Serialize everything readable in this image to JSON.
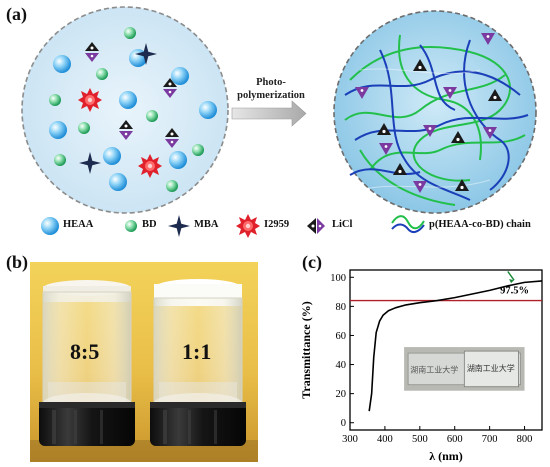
{
  "panels": {
    "a": "(a)",
    "b": "(b)",
    "c": "(c)"
  },
  "arrow": {
    "line1": "Photo-",
    "line2": "polymerization"
  },
  "legend": {
    "heaa": "HEAA",
    "bd": "BD",
    "mba": "MBA",
    "i2959": "I2959",
    "licl": "LiCl",
    "chain": "p(HEAA-co-BD) chain"
  },
  "photo": {
    "left_ratio": "8:5",
    "right_ratio": "1:1"
  },
  "inset": {
    "left_text": "湖南工业大学",
    "right_text": "湖南工业大学"
  },
  "colors": {
    "heaa": "#3fa9e8",
    "bd": "#2fb86a",
    "mba": "#1d2b4f",
    "i2959": "#e0202a",
    "licl_anion": "#1a1a1a",
    "licl_cation": "#7a3aa0",
    "chain_green": "#22c04a",
    "chain_blue": "#1a3fb8",
    "threshold_line": "#b0202a"
  },
  "chart_data": {
    "type": "line",
    "xlabel": "λ (nm)",
    "ylabel": "Transmittance (%)",
    "xlim": [
      300,
      850
    ],
    "ylim": [
      -5,
      105
    ],
    "xticks": [
      300,
      400,
      500,
      600,
      700,
      800
    ],
    "yticks": [
      0,
      20,
      40,
      60,
      80,
      100
    ],
    "annotation": "97.5%",
    "threshold_y": 84,
    "series": [
      {
        "x": [
          355,
          362,
          368,
          375,
          385,
          395,
          410,
          430,
          460,
          500,
          550,
          600,
          650,
          700,
          750,
          800,
          850
        ],
        "y": [
          8,
          20,
          45,
          62,
          70,
          74,
          77,
          79,
          81,
          82.5,
          84,
          86,
          88.5,
          91,
          94,
          96.5,
          97.5
        ]
      }
    ]
  }
}
